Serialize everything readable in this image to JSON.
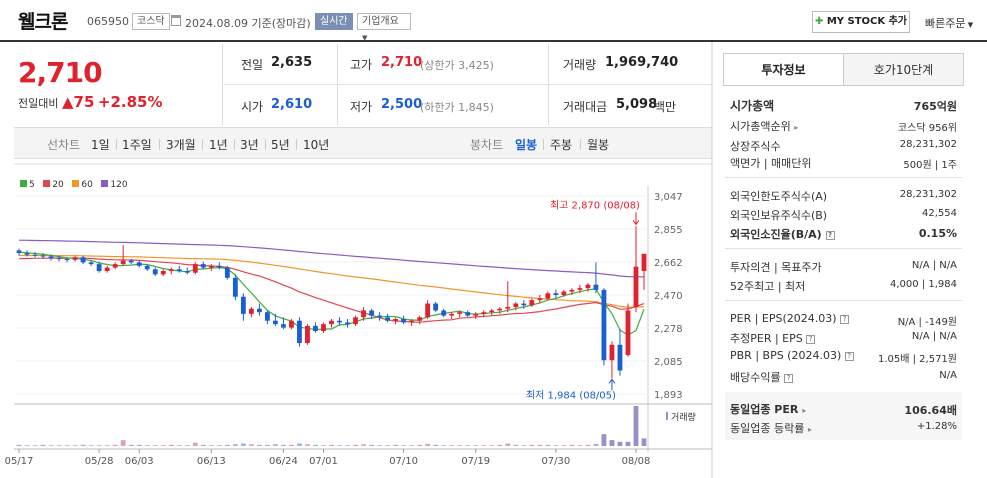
{
  "header": {
    "name": "웰크론",
    "code": "065950",
    "market": "코스닥",
    "date_text": "2024.08.09 기준(장마감)",
    "realtime": "실시간",
    "company_info": "기업개요",
    "my_stock_btn": "MY STOCK 추가",
    "quick_order": "빠른주문"
  },
  "quote": {
    "price": "2,710",
    "change_label": "전일대비",
    "change_value": "▲75",
    "change_rate": "+2.85%",
    "prev_label": "전일",
    "prev_value": "2,635",
    "open_label": "시가",
    "open_value": "2,610",
    "high_label": "고가",
    "high_value": "2,710",
    "upper_limit": "(상한가 3,425)",
    "low_label": "저가",
    "low_value": "2,500",
    "lower_limit": "(하한가 1,845)",
    "volume_label": "거래량",
    "volume_value": "1,969,740",
    "amount_label": "거래대금",
    "amount_value": "5,098",
    "amount_unit": "백만"
  },
  "chart_bar": {
    "line_label": "선차트",
    "periods": [
      "1일",
      "1주일",
      "3개월",
      "1년",
      "3년",
      "5년",
      "10년"
    ],
    "candle_label": "봉차트",
    "candle_types": [
      "일봉",
      "주봉",
      "월봉"
    ],
    "active_candle": "일봉"
  },
  "colors": {
    "up": "#e0212e",
    "down": "#1a5fd1",
    "ma5": "#3fae3f",
    "ma20": "#e0484f",
    "ma60": "#f0962a",
    "ma120": "#8b5bc4"
  },
  "chart_data": {
    "type": "candlestick",
    "legend": [
      "5",
      "20",
      "60",
      "120"
    ],
    "ylim": [
      1893,
      3047
    ],
    "yticks": [
      "3,047",
      "2,855",
      "2,662",
      "2,470",
      "2,278",
      "2,085",
      "1,893"
    ],
    "xticks": [
      "05/17",
      "05/28",
      "06/03",
      "06/13",
      "06/24",
      "07/01",
      "07/10",
      "07/19",
      "07/30",
      "08/08"
    ],
    "high_annotation": "최고 2,870 (08/08)",
    "low_annotation": "최저 1,984 (08/05)",
    "volume_label": "거래량",
    "candles": [
      [
        2730,
        2740,
        2700,
        2715
      ],
      [
        2715,
        2730,
        2695,
        2705
      ],
      [
        2705,
        2720,
        2690,
        2700
      ],
      [
        2700,
        2715,
        2680,
        2695
      ],
      [
        2695,
        2705,
        2670,
        2685
      ],
      [
        2685,
        2700,
        2665,
        2680
      ],
      [
        2680,
        2690,
        2660,
        2675
      ],
      [
        2675,
        2700,
        2665,
        2690
      ],
      [
        2690,
        2700,
        2650,
        2660
      ],
      [
        2660,
        2670,
        2640,
        2650
      ],
      [
        2650,
        2665,
        2600,
        2610
      ],
      [
        2610,
        2640,
        2600,
        2630
      ],
      [
        2630,
        2660,
        2620,
        2650
      ],
      [
        2650,
        2760,
        2640,
        2670
      ],
      [
        2670,
        2680,
        2650,
        2660
      ],
      [
        2660,
        2670,
        2630,
        2640
      ],
      [
        2640,
        2650,
        2610,
        2620
      ],
      [
        2620,
        2630,
        2580,
        2590
      ],
      [
        2590,
        2620,
        2580,
        2610
      ],
      [
        2610,
        2630,
        2590,
        2620
      ],
      [
        2620,
        2640,
        2600,
        2610
      ],
      [
        2610,
        2630,
        2590,
        2600
      ],
      [
        2600,
        2660,
        2590,
        2650
      ],
      [
        2650,
        2665,
        2620,
        2630
      ],
      [
        2630,
        2650,
        2610,
        2640
      ],
      [
        2640,
        2660,
        2620,
        2630
      ],
      [
        2630,
        2640,
        2560,
        2570
      ],
      [
        2570,
        2590,
        2440,
        2460
      ],
      [
        2460,
        2480,
        2320,
        2360
      ],
      [
        2360,
        2400,
        2340,
        2390
      ],
      [
        2390,
        2420,
        2350,
        2370
      ],
      [
        2370,
        2380,
        2300,
        2320
      ],
      [
        2320,
        2360,
        2290,
        2300
      ],
      [
        2300,
        2340,
        2270,
        2280
      ],
      [
        2280,
        2330,
        2270,
        2320
      ],
      [
        2320,
        2340,
        2170,
        2190
      ],
      [
        2190,
        2300,
        2180,
        2290
      ],
      [
        2290,
        2310,
        2250,
        2260
      ],
      [
        2260,
        2310,
        2250,
        2300
      ],
      [
        2300,
        2330,
        2280,
        2320
      ],
      [
        2320,
        2340,
        2290,
        2310
      ],
      [
        2310,
        2330,
        2280,
        2300
      ],
      [
        2300,
        2350,
        2290,
        2340
      ],
      [
        2340,
        2400,
        2320,
        2380
      ],
      [
        2380,
        2390,
        2330,
        2350
      ],
      [
        2350,
        2370,
        2320,
        2340
      ],
      [
        2340,
        2360,
        2310,
        2320
      ],
      [
        2320,
        2340,
        2300,
        2330
      ],
      [
        2330,
        2350,
        2300,
        2310
      ],
      [
        2310,
        2330,
        2290,
        2320
      ],
      [
        2320,
        2350,
        2300,
        2340
      ],
      [
        2340,
        2440,
        2330,
        2420
      ],
      [
        2420,
        2430,
        2370,
        2380
      ],
      [
        2380,
        2390,
        2340,
        2350
      ],
      [
        2350,
        2370,
        2330,
        2360
      ],
      [
        2360,
        2380,
        2340,
        2370
      ],
      [
        2370,
        2380,
        2340,
        2350
      ],
      [
        2350,
        2370,
        2330,
        2360
      ],
      [
        2360,
        2380,
        2340,
        2370
      ],
      [
        2370,
        2390,
        2350,
        2380
      ],
      [
        2380,
        2400,
        2360,
        2390
      ],
      [
        2390,
        2550,
        2370,
        2400
      ],
      [
        2400,
        2430,
        2380,
        2420
      ],
      [
        2420,
        2440,
        2390,
        2410
      ],
      [
        2410,
        2450,
        2400,
        2440
      ],
      [
        2440,
        2470,
        2420,
        2450
      ],
      [
        2450,
        2490,
        2440,
        2480
      ],
      [
        2480,
        2500,
        2450,
        2470
      ],
      [
        2470,
        2500,
        2460,
        2490
      ],
      [
        2490,
        2510,
        2470,
        2500
      ],
      [
        2500,
        2530,
        2480,
        2510
      ],
      [
        2510,
        2540,
        2490,
        2530
      ],
      [
        2530,
        2660,
        2480,
        2500
      ],
      [
        2500,
        2510,
        2060,
        2090
      ],
      [
        2090,
        2200,
        1984,
        2180
      ],
      [
        2180,
        2270,
        2000,
        2030
      ],
      [
        2120,
        2420,
        2110,
        2380
      ],
      [
        2400,
        2870,
        2370,
        2635
      ],
      [
        2610,
        2710,
        2500,
        2710
      ]
    ],
    "volumes": [
      3,
      2,
      2,
      3,
      2,
      2,
      2,
      2,
      3,
      2,
      2,
      2,
      3,
      14,
      3,
      3,
      2,
      2,
      2,
      3,
      2,
      2,
      8,
      3,
      2,
      2,
      3,
      4,
      6,
      4,
      3,
      3,
      4,
      3,
      3,
      6,
      4,
      3,
      2,
      3,
      2,
      2,
      3,
      4,
      3,
      2,
      2,
      3,
      2,
      2,
      3,
      5,
      3,
      2,
      2,
      2,
      2,
      2,
      2,
      2,
      3,
      6,
      3,
      2,
      3,
      3,
      3,
      2,
      2,
      3,
      2,
      3,
      5,
      28,
      14,
      10,
      10,
      95,
      18
    ]
  },
  "panel": {
    "tab_active": "투자정보",
    "tab_other": "호가10단계",
    "market_cap_label": "시가총액",
    "market_cap_value": "765억원",
    "rank_label": "시가총액순위",
    "rank_value": "코스닥 956위",
    "listed_label": "상장주식수",
    "listed_value": "28,231,302",
    "par_label": "액면가 | 매매단위",
    "par_value": "500원 | 1주",
    "foreign_limit_label": "외국인한도주식수(A)",
    "foreign_limit_value": "28,231,302",
    "foreign_hold_label": "외국인보유주식수(B)",
    "foreign_hold_value": "42,554",
    "foreign_rate_label": "외국인소진율(B/A)",
    "foreign_rate_value": "0.15%",
    "opinion_label": "투자의견 | 목표주가",
    "opinion_value": "N/A | N/A",
    "week52_label": "52주최고 | 최저",
    "week52_value": "4,000 | 1,984",
    "per_label": "PER | EPS(2024.03)",
    "per_value": "N/A | -149원",
    "est_per_label": "추정PER | EPS",
    "est_per_value": "N/A | N/A",
    "pbr_label": "PBR | BPS (2024.03)",
    "pbr_value": "1.05배 | 2,571원",
    "div_label": "배당수익률",
    "div_value": "N/A",
    "ind_per_label": "동일업종 PER",
    "ind_per_value": "106.64배",
    "ind_rate_label": "동일업종 등락률",
    "ind_rate_value": "+1.28%"
  }
}
